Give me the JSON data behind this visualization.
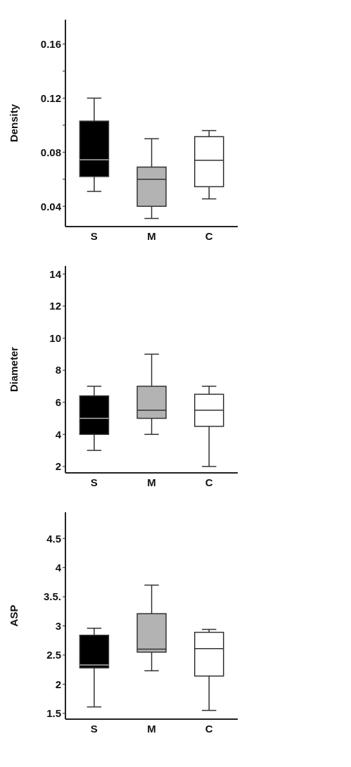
{
  "chart_data": [
    {
      "type": "box",
      "ylabel": "Density",
      "categories": [
        "S",
        "M",
        "C"
      ],
      "colors": [
        "#000000",
        "#b3b3b3",
        "#ffffff"
      ],
      "ylim": [
        0.025,
        0.178
      ],
      "yticks": [
        0.04,
        {
          "value": 0.06,
          "label": null
        },
        0.08,
        {
          "value": 0.1,
          "label": null
        },
        0.12,
        {
          "value": 0.14,
          "label": null
        },
        0.16
      ],
      "boxes": [
        {
          "low": 0.051,
          "q1": 0.062,
          "median": 0.0745,
          "q3": 0.103,
          "high": 0.12
        },
        {
          "low": 0.031,
          "q1": 0.04,
          "median": 0.06,
          "q3": 0.069,
          "high": 0.09
        },
        {
          "low": 0.0455,
          "q1": 0.0545,
          "median": 0.074,
          "q3": 0.0915,
          "high": 0.096
        }
      ]
    },
    {
      "type": "box",
      "ylabel": "Diameter",
      "categories": [
        "S",
        "M",
        "C"
      ],
      "colors": [
        "#000000",
        "#b3b3b3",
        "#ffffff"
      ],
      "ylim": [
        1.6,
        14.5
      ],
      "yticks": [
        2,
        4,
        6,
        8,
        10,
        12,
        14
      ],
      "boxes": [
        {
          "low": 3,
          "q1": 4,
          "median": 5,
          "q3": 6.4,
          "high": 7
        },
        {
          "low": 4,
          "q1": 5,
          "median": 5.5,
          "q3": 7,
          "high": 9
        },
        {
          "low": 2,
          "q1": 4.5,
          "median": 5.5,
          "q3": 6.5,
          "high": 7
        }
      ]
    },
    {
      "type": "box",
      "ylabel": "ASP",
      "categories": [
        "S",
        "M",
        "C"
      ],
      "colors": [
        "#000000",
        "#b3b3b3",
        "#ffffff"
      ],
      "ylim": [
        1.4,
        4.95
      ],
      "yticks": [
        1.5,
        2,
        2.5,
        3,
        {
          "value": 3.5,
          "label": "3.5."
        },
        4,
        4.5
      ],
      "boxes": [
        {
          "low": 1.61,
          "q1": 2.28,
          "median": 2.33,
          "q3": 2.84,
          "high": 2.96
        },
        {
          "low": 2.23,
          "q1": 2.55,
          "median": 2.6,
          "q3": 3.21,
          "high": 3.7
        },
        {
          "low": 1.55,
          "q1": 2.14,
          "median": 2.61,
          "q3": 2.89,
          "high": 2.94
        }
      ]
    }
  ]
}
